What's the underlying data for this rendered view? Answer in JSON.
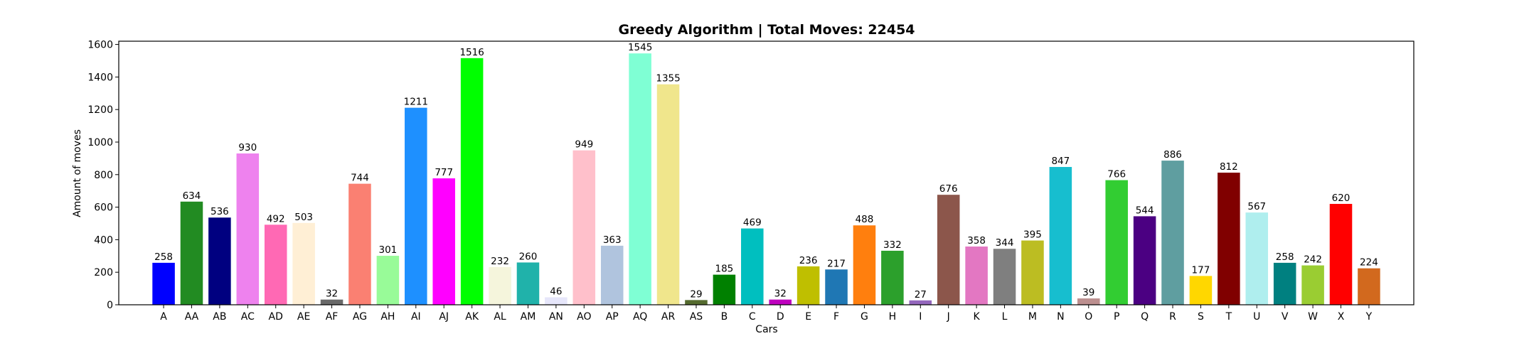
{
  "chart_data": {
    "type": "bar",
    "title": "Greedy Algorithm | Total Moves: 22454",
    "xlabel": "Cars",
    "ylabel": "Amount of moves",
    "ylim": [
      0,
      1620
    ],
    "yticks": [
      0,
      200,
      400,
      600,
      800,
      1000,
      1200,
      1400,
      1600
    ],
    "grid": false,
    "categories": [
      "A",
      "AA",
      "AB",
      "AC",
      "AD",
      "AE",
      "AF",
      "AG",
      "AH",
      "AI",
      "AJ",
      "AK",
      "AL",
      "AM",
      "AN",
      "AO",
      "AP",
      "AQ",
      "AR",
      "AS",
      "B",
      "C",
      "D",
      "E",
      "F",
      "G",
      "H",
      "I",
      "J",
      "K",
      "L",
      "M",
      "N",
      "O",
      "P",
      "Q",
      "R",
      "S",
      "T",
      "U",
      "V",
      "W",
      "X",
      "Y"
    ],
    "values": [
      258,
      634,
      536,
      930,
      492,
      503,
      32,
      744,
      301,
      1211,
      777,
      1516,
      232,
      260,
      46,
      949,
      363,
      1545,
      1355,
      29,
      185,
      469,
      32,
      236,
      217,
      488,
      332,
      27,
      676,
      358,
      344,
      395,
      847,
      39,
      766,
      544,
      886,
      177,
      812,
      567,
      258,
      242,
      620,
      224
    ],
    "colors": [
      "#0000ff",
      "#228b22",
      "#000080",
      "#ee82ee",
      "#ff69b4",
      "#ffefd5",
      "#696969",
      "#fa8072",
      "#98fb98",
      "#1e90ff",
      "#ff00ff",
      "#00ff00",
      "#f5f5dc",
      "#20b2aa",
      "#e6e6fa",
      "#ffc0cb",
      "#b0c4de",
      "#7fffd4",
      "#f0e68c",
      "#556b2f",
      "#008000",
      "#00bfbf",
      "#bf00bf",
      "#bfbf00",
      "#1f77b4",
      "#ff7f0e",
      "#2ca02c",
      "#9467bd",
      "#8c564b",
      "#e377c2",
      "#7f7f7f",
      "#bcbd22",
      "#17becf",
      "#bc8f8f",
      "#32cd32",
      "#4b0082",
      "#5f9ea0",
      "#ffd700",
      "#800000",
      "#afeeee",
      "#008080",
      "#9acd32",
      "#ff0000",
      "#d2691e"
    ]
  }
}
